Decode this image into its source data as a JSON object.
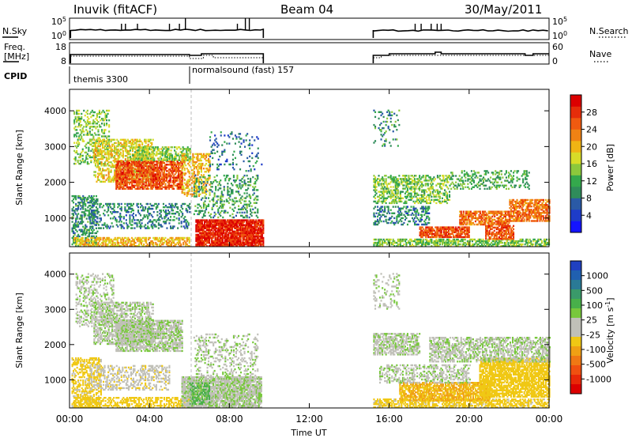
{
  "header": {
    "radar": "Inuvik (fitACF)",
    "beam": "Beam 04",
    "date": "30/May/2011"
  },
  "status_panels": {
    "nsky_label": "N.Sky",
    "nsearch_label": "N.Search",
    "freq_label_1": "Freq.",
    "freq_label_2": "[MHz]",
    "nave_label": "Nave",
    "cpid_label": "CPID",
    "noise_ticks_left": [
      "10^5",
      "10^0"
    ],
    "noise_ticks_right": [
      "10^5",
      "10^0"
    ],
    "freq_ticks": [
      "18",
      "8"
    ],
    "nave_ticks": [
      "60",
      "0"
    ],
    "cpid_segments": [
      {
        "name": "themis 3300",
        "start_hour": 0,
        "end_hour": 6
      },
      {
        "name": "normalsound (fast) 157",
        "start_hour": 6,
        "end_hour": 9.7
      }
    ]
  },
  "x_axis": {
    "label": "Time UT",
    "ticks": [
      "00:00",
      "04:00",
      "08:00",
      "12:00",
      "16:00",
      "20:00",
      "00:00"
    ],
    "tick_hours": [
      0,
      4,
      8,
      12,
      16,
      20,
      24
    ]
  },
  "chart_data": [
    {
      "type": "heatmap",
      "title": "",
      "xlabel": "Time UT",
      "ylabel": "Slant Range [km]",
      "xlim": [
        0,
        24
      ],
      "ylim": [
        200,
        4600
      ],
      "yticks": [
        1000,
        2000,
        3000,
        4000
      ],
      "data_gap_hours": [
        9.7,
        15.2
      ],
      "colorbar": {
        "label": "Power [dB]",
        "range": [
          0,
          32
        ],
        "ticks": [
          "4",
          "8",
          "12",
          "16",
          "20",
          "24",
          "28"
        ],
        "tick_values": [
          4,
          8,
          12,
          16,
          20,
          24,
          28
        ],
        "colors": [
          "#1414ff",
          "#1e3cc8",
          "#2a5aa6",
          "#2f8c5a",
          "#34a84c",
          "#8cc83c",
          "#d8dc28",
          "#f0b414",
          "#f08214",
          "#f05a10",
          "#e62d0a",
          "#dc0000"
        ]
      },
      "regions": [
        {
          "t0": 0.1,
          "t1": 1.4,
          "r0": 200,
          "r1": 1600,
          "val": 10,
          "density": 0.45
        },
        {
          "t0": 0.2,
          "t1": 2.0,
          "r0": 2500,
          "r1": 4000,
          "val": 14,
          "density": 0.3
        },
        {
          "t0": 1.2,
          "t1": 4.2,
          "r0": 2000,
          "r1": 3200,
          "val": 18,
          "density": 0.5
        },
        {
          "t0": 2.3,
          "t1": 5.6,
          "r0": 1800,
          "r1": 2600,
          "val": 26,
          "density": 0.75
        },
        {
          "t0": 3.0,
          "t1": 6.0,
          "r0": 2600,
          "r1": 3000,
          "val": 15,
          "density": 0.5
        },
        {
          "t0": 0.2,
          "t1": 6.0,
          "r0": 200,
          "r1": 450,
          "val": 20,
          "density": 0.6
        },
        {
          "t0": 1.0,
          "t1": 6.0,
          "r0": 700,
          "r1": 1400,
          "val": 9,
          "density": 0.3
        },
        {
          "t0": 5.6,
          "t1": 7.0,
          "r0": 1600,
          "r1": 2800,
          "val": 20,
          "density": 0.4
        },
        {
          "t0": 6.3,
          "t1": 9.7,
          "r0": 200,
          "r1": 950,
          "val": 29,
          "density": 0.9
        },
        {
          "t0": 6.2,
          "t1": 9.4,
          "r0": 1000,
          "r1": 2200,
          "val": 11,
          "density": 0.25
        },
        {
          "t0": 7.0,
          "t1": 9.6,
          "r0": 2300,
          "r1": 3400,
          "val": 8,
          "density": 0.12
        },
        {
          "t0": 15.2,
          "t1": 24.0,
          "r0": 200,
          "r1": 420,
          "val": 14,
          "density": 0.6
        },
        {
          "t0": 15.2,
          "t1": 19.0,
          "r0": 1400,
          "r1": 2200,
          "val": 14,
          "density": 0.45
        },
        {
          "t0": 15.2,
          "t1": 18.0,
          "r0": 800,
          "r1": 1300,
          "val": 9,
          "density": 0.35
        },
        {
          "t0": 17.5,
          "t1": 20.0,
          "r0": 450,
          "r1": 750,
          "val": 26,
          "density": 0.8
        },
        {
          "t0": 19.5,
          "t1": 22.0,
          "r0": 800,
          "r1": 1200,
          "val": 24,
          "density": 0.7
        },
        {
          "t0": 20.8,
          "t1": 22.2,
          "r0": 400,
          "r1": 800,
          "val": 26,
          "density": 0.7
        },
        {
          "t0": 22.0,
          "t1": 24.0,
          "r0": 900,
          "r1": 1500,
          "val": 24,
          "density": 0.7
        },
        {
          "t0": 19.0,
          "t1": 23.0,
          "r0": 1800,
          "r1": 2300,
          "val": 12,
          "density": 0.3
        },
        {
          "t0": 15.2,
          "t1": 16.5,
          "r0": 3000,
          "r1": 4000,
          "val": 10,
          "density": 0.15
        }
      ]
    },
    {
      "type": "heatmap",
      "title": "",
      "xlabel": "Time UT",
      "ylabel": "Slant Range [km]",
      "xlim": [
        0,
        24
      ],
      "ylim": [
        200,
        4600
      ],
      "yticks": [
        1000,
        2000,
        3000,
        4000
      ],
      "data_gap_hours": [
        9.7,
        15.2
      ],
      "colorbar": {
        "label": "Velocity [m s^-1]",
        "range": [
          -1250,
          1250
        ],
        "ticks": [
          "1000",
          "500",
          "100",
          "25",
          "-25",
          "-100",
          "-500",
          "-1000"
        ],
        "tick_values": [
          1000,
          500,
          100,
          25,
          -25,
          -100,
          -500,
          -1000
        ],
        "colors": [
          "#2040c0",
          "#2060b0",
          "#2a7a96",
          "#3a9a6a",
          "#48b04a",
          "#78c83c",
          "#c0c0b8",
          "#c0c0b8",
          "#f0c814",
          "#f0a014",
          "#f07814",
          "#f05010",
          "#e82808",
          "#dc0000"
        ]
      },
      "regions": [
        {
          "t0": 0.1,
          "t1": 1.6,
          "r0": 200,
          "r1": 1600,
          "val": -150,
          "density": 0.5
        },
        {
          "t0": 0.3,
          "t1": 2.2,
          "r0": 2500,
          "r1": 4000,
          "val": 0,
          "density": 0.3
        },
        {
          "t0": 1.2,
          "t1": 4.2,
          "r0": 2000,
          "r1": 3200,
          "val": 0,
          "density": 0.5
        },
        {
          "t0": 2.3,
          "t1": 5.6,
          "r0": 1800,
          "r1": 2700,
          "val": 0,
          "density": 0.7
        },
        {
          "t0": 0.2,
          "t1": 6.0,
          "r0": 200,
          "r1": 500,
          "val": -200,
          "density": 0.5
        },
        {
          "t0": 1.0,
          "t1": 5.0,
          "r0": 700,
          "r1": 1400,
          "val": -60,
          "density": 0.35
        },
        {
          "t0": 5.6,
          "t1": 9.6,
          "r0": 200,
          "r1": 1100,
          "val": 0,
          "density": 0.85
        },
        {
          "t0": 6.0,
          "t1": 7.0,
          "r0": 300,
          "r1": 900,
          "val": 150,
          "density": 0.4
        },
        {
          "t0": 6.2,
          "t1": 9.4,
          "r0": 1100,
          "r1": 2300,
          "val": 0,
          "density": 0.25
        },
        {
          "t0": 15.2,
          "t1": 17.5,
          "r0": 1700,
          "r1": 2300,
          "val": 0,
          "density": 0.6
        },
        {
          "t0": 15.2,
          "t1": 24.0,
          "r0": 200,
          "r1": 450,
          "val": -150,
          "density": 0.6
        },
        {
          "t0": 16.5,
          "t1": 21.0,
          "r0": 400,
          "r1": 900,
          "val": -300,
          "density": 0.75
        },
        {
          "t0": 20.5,
          "t1": 24.0,
          "r0": 500,
          "r1": 1600,
          "val": -200,
          "density": 0.75
        },
        {
          "t0": 18.0,
          "t1": 24.0,
          "r0": 1500,
          "r1": 2200,
          "val": 0,
          "density": 0.55
        },
        {
          "t0": 15.2,
          "t1": 16.5,
          "r0": 3000,
          "r1": 4000,
          "val": 0,
          "density": 0.2
        },
        {
          "t0": 15.5,
          "t1": 20.0,
          "r0": 900,
          "r1": 1400,
          "val": 0,
          "density": 0.4
        }
      ]
    }
  ]
}
